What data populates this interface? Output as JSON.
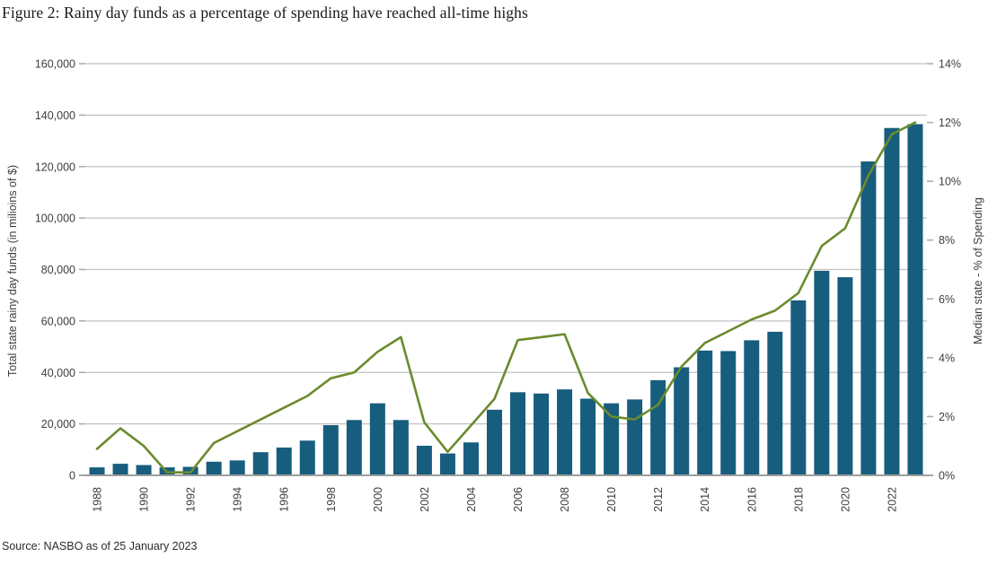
{
  "title": "Figure 2: Rainy day funds as a percentage of spending have reached all-time highs",
  "source": "Source: NASBO as of 25 January 2023",
  "colors": {
    "bar": "#175d7d",
    "line": "#6b8b2d",
    "gridline": "#c2c2c2",
    "baseline": "#9e9e9e",
    "tick": "#a8a8a8",
    "tick_text": "#3d3d3d"
  },
  "chart_data": {
    "type": "bar+line",
    "title": "Figure 2: Rainy day funds as a percentage of spending have reached all-time highs",
    "categories": [
      "1988",
      "1989",
      "1990",
      "1991",
      "1992",
      "1993",
      "1994",
      "1995",
      "1996",
      "1997",
      "1998",
      "1999",
      "2000",
      "2001",
      "2002",
      "2003",
      "2004",
      "2005",
      "2006",
      "2007",
      "2008",
      "2009",
      "2010",
      "2011",
      "2012",
      "2013",
      "2014",
      "2015",
      "2016",
      "2017",
      "2018",
      "2019",
      "2020",
      "2021",
      "2022",
      "2023"
    ],
    "x_tick_labels": [
      "1988",
      "1990",
      "1992",
      "1994",
      "1996",
      "1998",
      "2000",
      "2002",
      "2004",
      "2006",
      "2008",
      "2010",
      "2012",
      "2014",
      "2016",
      "2018",
      "2020",
      "2022"
    ],
    "series": [
      {
        "name": "Total state rainy day funds (in milioins of $)",
        "type": "bar",
        "axis": "left",
        "values": [
          3100,
          4500,
          4000,
          3100,
          3300,
          5300,
          5800,
          9000,
          10800,
          13500,
          19500,
          21500,
          28000,
          21500,
          11500,
          8500,
          12800,
          25500,
          32300,
          31800,
          33400,
          29800,
          28000,
          29500,
          37000,
          42000,
          48500,
          48300,
          52500,
          55800,
          68000,
          79500,
          77000,
          122000,
          135000,
          136500
        ]
      },
      {
        "name": "Median state - % of Spending",
        "type": "line",
        "axis": "right",
        "values": [
          0.9,
          1.6,
          1.0,
          0.1,
          0.1,
          1.1,
          1.5,
          1.9,
          2.3,
          2.7,
          3.3,
          3.5,
          4.2,
          4.7,
          1.8,
          0.8,
          1.7,
          2.6,
          4.6,
          4.7,
          4.8,
          2.8,
          2.0,
          1.9,
          2.4,
          3.7,
          4.5,
          4.9,
          5.3,
          5.6,
          6.2,
          7.8,
          8.4,
          10.2,
          11.6,
          12.0
        ]
      }
    ],
    "left_axis": {
      "label": "Total state rainy day funds (in milioins of $)",
      "min": 0,
      "max": 160000,
      "tick_step": 20000,
      "tick_labels": [
        "0",
        "20,000",
        "40,000",
        "60,000",
        "80,000",
        "100,000",
        "120,000",
        "140,000",
        "160,000"
      ]
    },
    "right_axis": {
      "label": "Median state - % of Spending",
      "min": 0,
      "max": 14,
      "tick_step": 2,
      "tick_labels": [
        "0%",
        "2%",
        "4%",
        "6%",
        "8%",
        "10%",
        "12%",
        "14%"
      ]
    },
    "grid": "horizontal-only",
    "legend": "none"
  }
}
